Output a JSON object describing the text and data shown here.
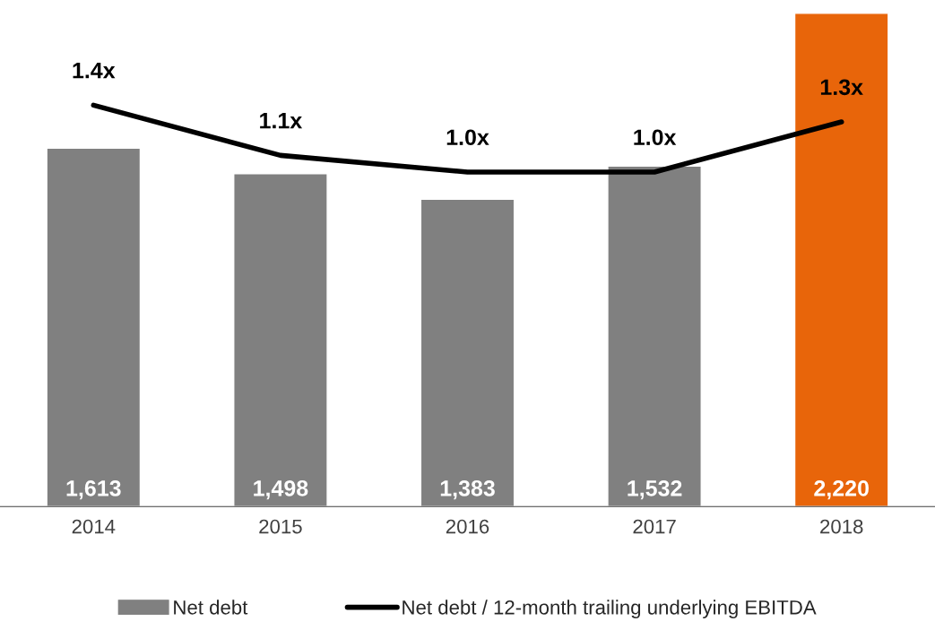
{
  "chart_data": {
    "type": "bar",
    "categories": [
      "2014",
      "2015",
      "2016",
      "2017",
      "2018"
    ],
    "series": [
      {
        "name": "Net debt",
        "color": "#808080",
        "colors": [
          "#808080",
          "#808080",
          "#808080",
          "#808080",
          "#e8650a"
        ],
        "values": [
          1613,
          1498,
          1383,
          1532,
          2220
        ],
        "value_labels": [
          "1,613",
          "1,498",
          "1,383",
          "1,532",
          "2,220"
        ]
      },
      {
        "name": "Net debt / 12-month trailing underlying EBITDA",
        "type": "line",
        "axis": "y2",
        "color": "#000000",
        "values": [
          1.4,
          1.1,
          1.0,
          1.0,
          1.3
        ],
        "value_labels": [
          "1.4x",
          "1.1x",
          "1.0x",
          "1.0x",
          "1.3x"
        ]
      }
    ],
    "y2lim": [
      -1.0,
      1.95
    ],
    "tick_labels": "x",
    "legend": "bottom",
    "grid": false,
    "marker": "none",
    "line_style": "solid"
  }
}
